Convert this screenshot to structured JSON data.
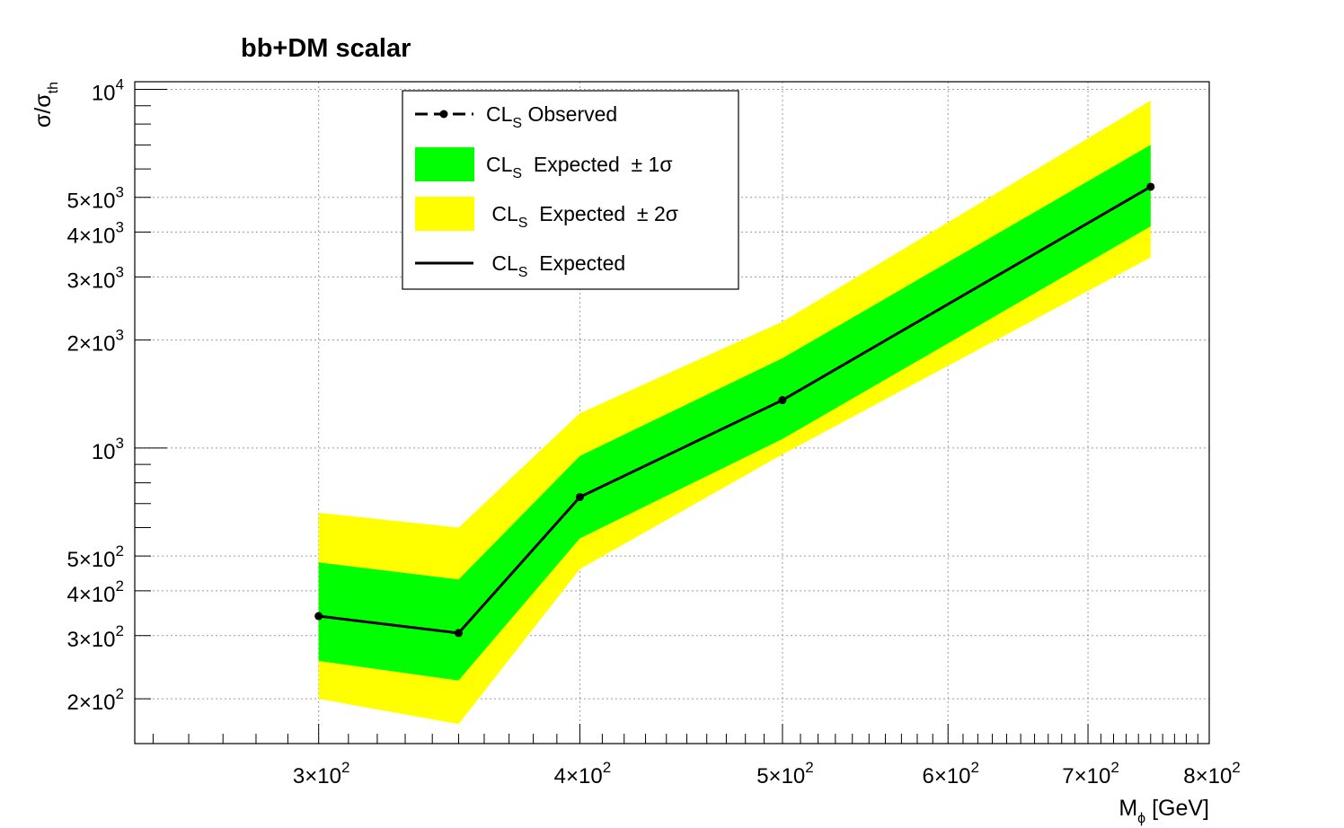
{
  "chart_data": {
    "type": "line",
    "title": "bb+DM scalar",
    "xlabel": {
      "base": "M",
      "sub": "ϕ",
      "rest": " [GeV]"
    },
    "ylabel": {
      "base": "σ/σ",
      "sub": "th"
    },
    "xscale": "log",
    "yscale": "log",
    "xlim": [
      245,
      800
    ],
    "ylim": [
      150,
      10500
    ],
    "grid": true,
    "legend_position": "top-center",
    "x_ticks": [
      {
        "value": 300,
        "mant": "3×10",
        "exp": "2"
      },
      {
        "value": 400,
        "mant": "4×10",
        "exp": "2"
      },
      {
        "value": 500,
        "mant": "5×10",
        "exp": "2"
      },
      {
        "value": 600,
        "mant": "6×10",
        "exp": "2"
      },
      {
        "value": 700,
        "mant": "7×10",
        "exp": "2"
      },
      {
        "value": 800,
        "mant": "8×10",
        "exp": "2"
      }
    ],
    "y_ticks": [
      {
        "value": 200,
        "mant": "2×10",
        "exp": "2"
      },
      {
        "value": 300,
        "mant": "3×10",
        "exp": "2"
      },
      {
        "value": 400,
        "mant": "4×10",
        "exp": "2"
      },
      {
        "value": 500,
        "mant": "5×10",
        "exp": "2"
      },
      {
        "value": 1000,
        "mant": "10",
        "exp": "3"
      },
      {
        "value": 2000,
        "mant": "2×10",
        "exp": "3"
      },
      {
        "value": 3000,
        "mant": "3×10",
        "exp": "3"
      },
      {
        "value": 4000,
        "mant": "4×10",
        "exp": "3"
      },
      {
        "value": 5000,
        "mant": "5×10",
        "exp": "3"
      },
      {
        "value": 10000,
        "mant": "10",
        "exp": "4"
      }
    ],
    "x": [
      300,
      350,
      400,
      500,
      750
    ],
    "expected": [
      340,
      305,
      730,
      1360,
      5350
    ],
    "observed": [
      340,
      305,
      730,
      1360,
      5350
    ],
    "band_1sigma": {
      "low": [
        255,
        225,
        560,
        1060,
        4150
      ],
      "high": [
        480,
        430,
        950,
        1780,
        7000
      ]
    },
    "band_2sigma": {
      "low": [
        200,
        170,
        460,
        960,
        3400
      ],
      "high": [
        660,
        600,
        1250,
        2250,
        9300
      ]
    },
    "colors": {
      "band_1sigma": "#00ff00",
      "band_2sigma": "#ffff00",
      "line": "#000000"
    },
    "legend": [
      {
        "key": "observed",
        "pre": "CL",
        "sub": "S",
        "post": " Observed"
      },
      {
        "key": "band_1sigma",
        "pre": "CL",
        "sub": "S",
        "post": "  Expected  ± 1σ"
      },
      {
        "key": "band_2sigma",
        "pre": " CL",
        "sub": "S",
        "post": "  Expected  ± 2σ"
      },
      {
        "key": "expected",
        "pre": " CL",
        "sub": "S",
        "post": "  Expected"
      }
    ]
  }
}
